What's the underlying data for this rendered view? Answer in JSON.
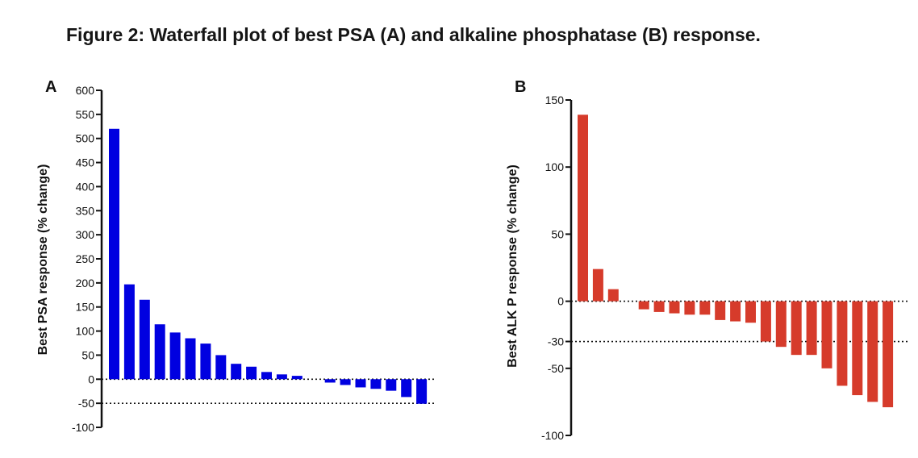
{
  "figure_title": "Figure 2: Waterfall plot of best PSA (A) and alkaline phosphatase (B) response.",
  "chart_data": [
    {
      "type": "bar",
      "panel_label": "A",
      "ylabel": "Best PSA response  (% change)",
      "ylim": [
        -100,
        600
      ],
      "yticks": [
        -100,
        -50,
        0,
        50,
        100,
        150,
        200,
        250,
        300,
        350,
        400,
        450,
        500,
        550,
        600
      ],
      "reference_line": -50,
      "color": "#0000e0",
      "values": [
        520,
        197,
        165,
        114,
        97,
        85,
        74,
        50,
        32,
        26,
        15,
        10,
        7,
        0,
        -7,
        -12,
        -17,
        -20,
        -24,
        -37,
        -51
      ]
    },
    {
      "type": "bar",
      "panel_label": "B",
      "ylabel": "Best ALK P response  (% change)",
      "ylim": [
        -100,
        150
      ],
      "yticks": [
        -100,
        -50,
        -30,
        0,
        50,
        100,
        150
      ],
      "reference_line": -30,
      "color": "#d63b2b",
      "values": [
        139,
        24,
        9,
        0,
        -6,
        -8,
        -9,
        -10,
        -10,
        -14,
        -15,
        -16,
        -30,
        -34,
        -40,
        -40,
        -50,
        -63,
        -70,
        -75,
        -79
      ]
    }
  ]
}
